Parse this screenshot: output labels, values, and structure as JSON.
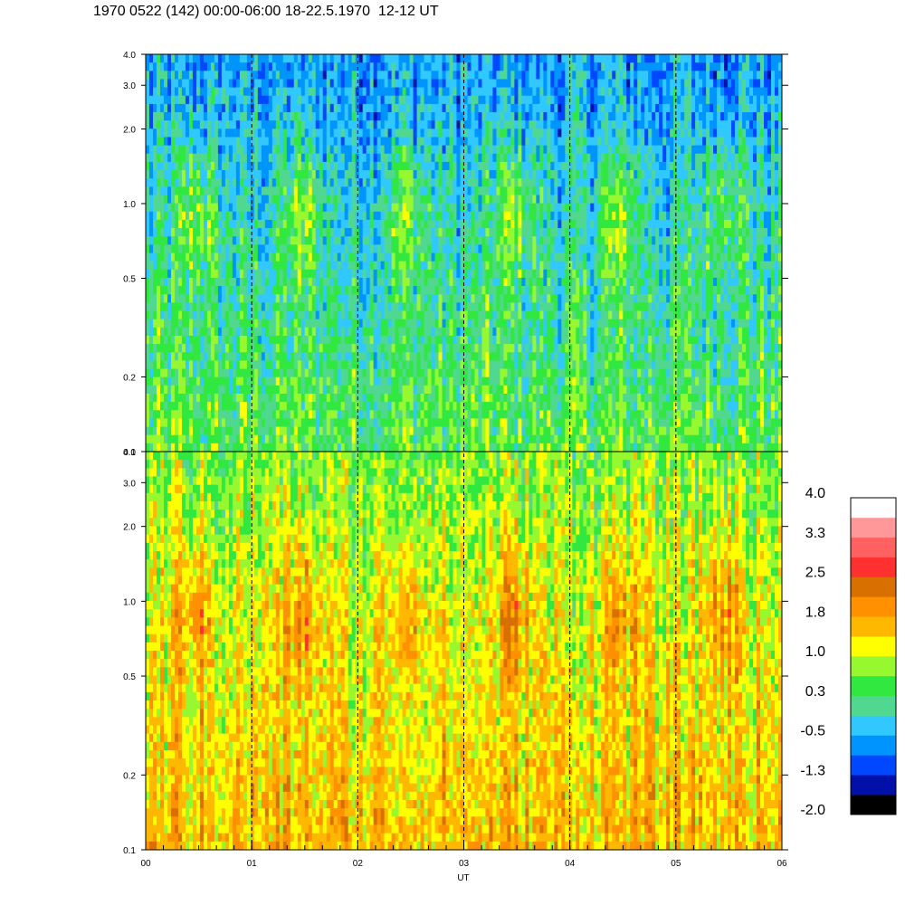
{
  "header": {
    "title": "1970 0522 (142) 00:00-06:00 18-22.5.1970  12-12 UT"
  },
  "chart_data": {
    "type": "heatmap",
    "x_axis": {
      "label": "UT",
      "range_hours": [
        0,
        6
      ],
      "tick_labels": [
        "00",
        "01",
        "02",
        "03",
        "04",
        "05",
        "06"
      ],
      "major_ticks_hours": [
        0,
        1,
        2,
        3,
        4,
        5,
        6
      ],
      "minor_tick_interval_hours": 0.1667,
      "dashed_gridlines_hours": [
        1,
        2,
        3,
        4,
        5
      ]
    },
    "panels": [
      {
        "id": "upper",
        "y_scale": "log",
        "y_range": [
          0.1,
          4.0
        ],
        "y_tick_values": [
          0.1,
          0.2,
          0.5,
          1.0,
          2.0,
          3.0,
          4.0
        ],
        "y_tick_labels": [
          "0.1",
          "0.2",
          "0.5",
          "1.0",
          "2.0",
          "3.0",
          "4.0"
        ],
        "dominant_level_low_freq": 0.5,
        "dominant_level_high_freq": -0.6
      },
      {
        "id": "lower",
        "y_scale": "log",
        "y_range": [
          0.1,
          4.0
        ],
        "y_tick_values": [
          0.1,
          0.2,
          0.5,
          1.0,
          2.0,
          3.0,
          4.0
        ],
        "y_tick_labels": [
          "0.1",
          "0.2",
          "0.5",
          "1.0",
          "2.0",
          "3.0",
          "4.0"
        ],
        "dominant_level_low_freq": 1.6,
        "dominant_level_high_freq": 0.7
      }
    ],
    "colorbar": {
      "range": [
        -2.0,
        4.0
      ],
      "labels": [
        "4.0",
        "3.3",
        "2.5",
        "1.8",
        "1.0",
        "0.3",
        "-0.5",
        "-1.3",
        "-2.0"
      ],
      "colors": [
        "#000000",
        "#0010a8",
        "#0048ff",
        "#0094ff",
        "#30c8ff",
        "#50d890",
        "#30e840",
        "#98f830",
        "#ffff00",
        "#ffb800",
        "#ff9000",
        "#d87000",
        "#ff3030",
        "#ff6060",
        "#ff9898",
        "#ffffff"
      ]
    },
    "grid": "dashed vertical lines at each hour"
  }
}
